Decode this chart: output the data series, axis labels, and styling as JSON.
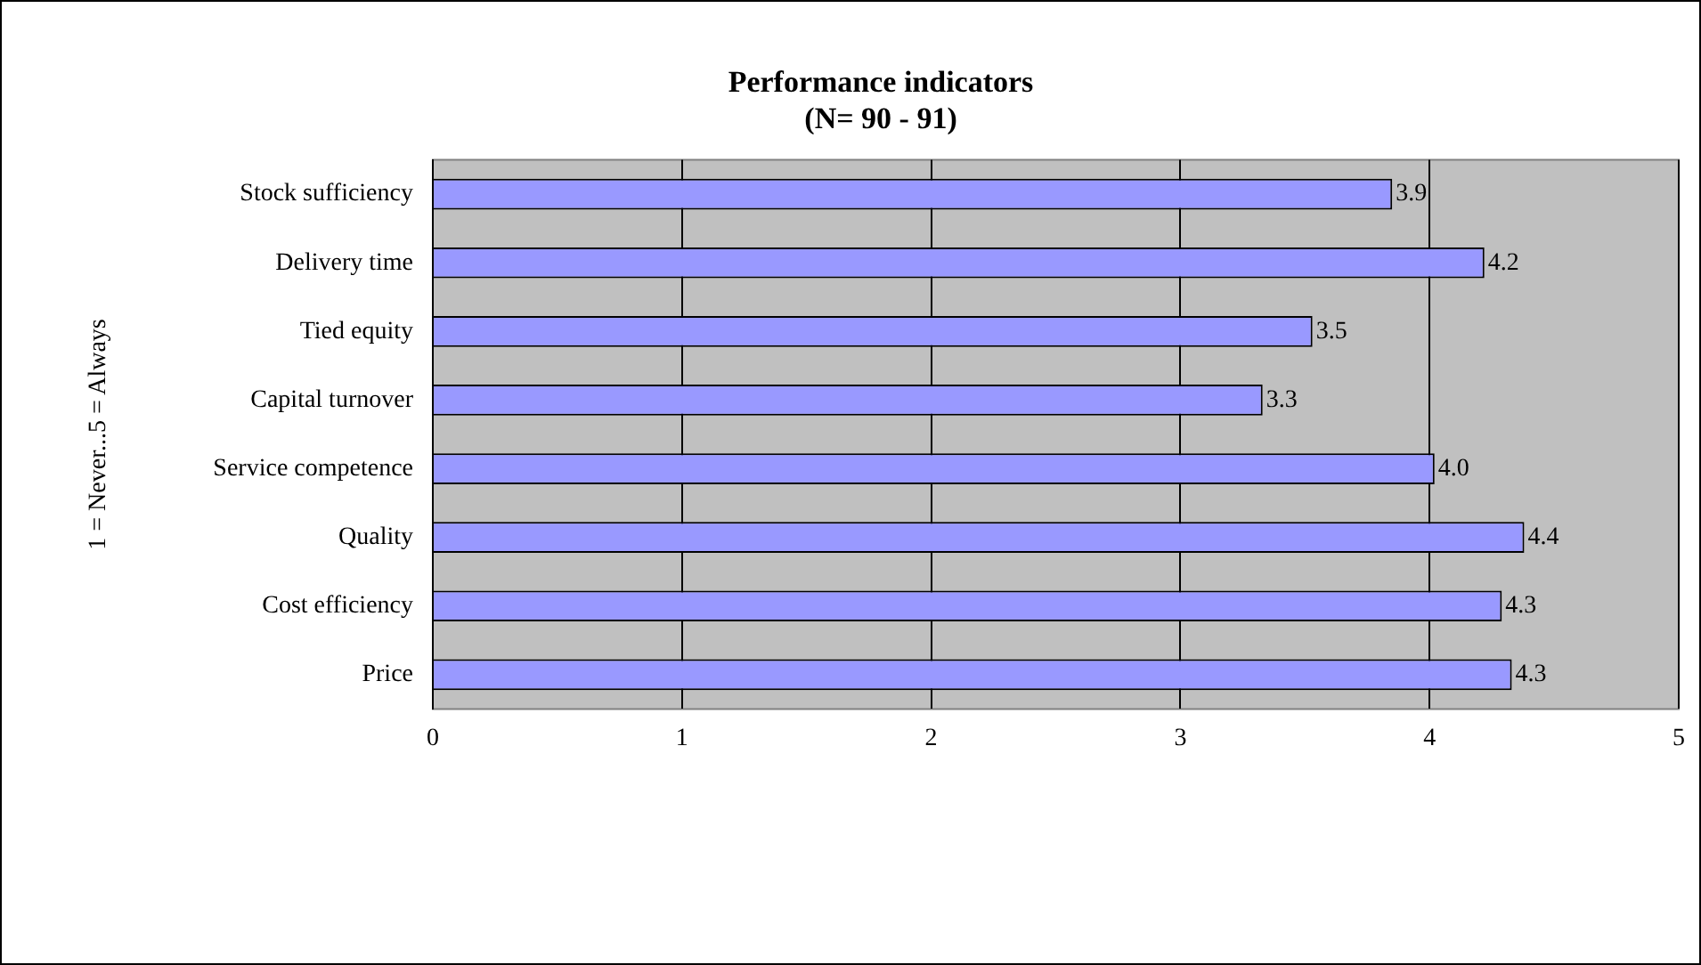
{
  "chart_data": {
    "type": "bar",
    "orientation": "horizontal",
    "title": [
      "Performance indicators",
      "(N= 90 - 91)"
    ],
    "ylabel": "1 = Never...5 = Always",
    "categories": [
      "Stock sufficiency",
      "Delivery time",
      "Tied equity",
      "Capital turnover",
      "Service competence",
      "Quality",
      "Cost efficiency",
      "Price"
    ],
    "values": [
      3.85,
      4.22,
      3.53,
      3.33,
      4.02,
      4.38,
      4.29,
      4.33
    ],
    "value_labels": [
      "3.9",
      "4.2",
      "3.5",
      "3.3",
      "4.0",
      "4.4",
      "4.3",
      "4.3"
    ],
    "color": "#9999ff",
    "xlim": [
      0,
      5
    ],
    "xticks": [
      0,
      1,
      2,
      3,
      4,
      5
    ],
    "grid": "x",
    "legend": false
  }
}
